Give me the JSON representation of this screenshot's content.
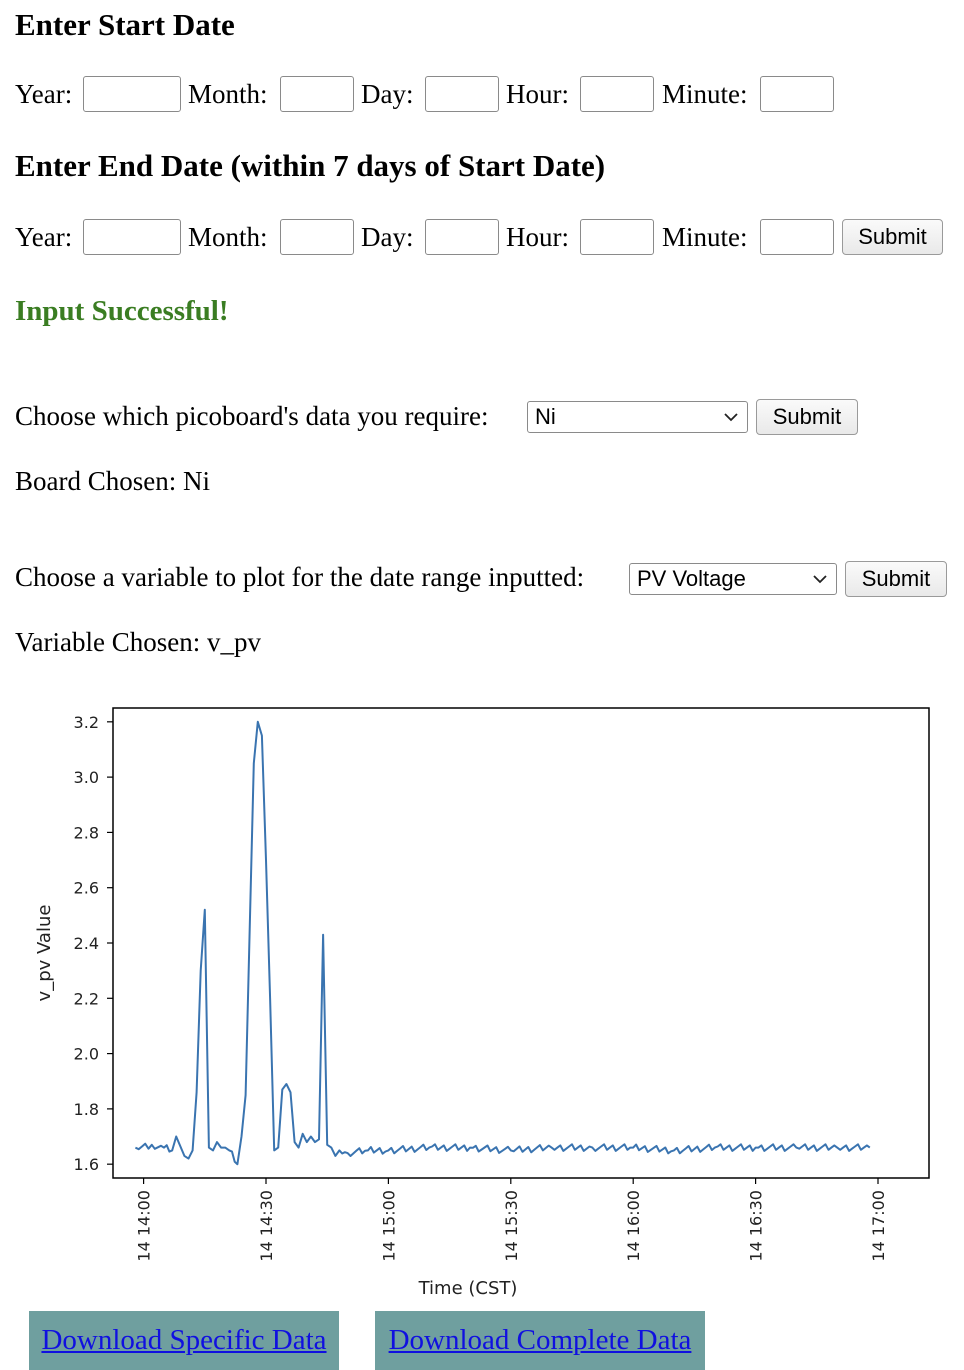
{
  "start": {
    "heading": "Enter Start Date",
    "labels": {
      "year": "Year:",
      "month": "Month:",
      "day": "Day:",
      "hour": "Hour:",
      "minute": "Minute:"
    }
  },
  "end": {
    "heading": "Enter End Date (within 7 days of Start Date)",
    "labels": {
      "year": "Year:",
      "month": "Month:",
      "day": "Day:",
      "hour": "Hour:",
      "minute": "Minute:"
    },
    "submit_label": "Submit"
  },
  "status": {
    "message": "Input Successful!",
    "color": "#3a7d22"
  },
  "board": {
    "prompt": "Choose which picoboard's data you require:",
    "selected": "Ni",
    "submit_label": "Submit",
    "chosen_text": "Board Chosen: Ni"
  },
  "variable": {
    "prompt": "Choose a variable to plot for the date range inputted:",
    "selected": "PV Voltage",
    "submit_label": "Submit",
    "chosen_text": "Variable Chosen: v_pv"
  },
  "downloads": {
    "specific_label": "Download Specific Data",
    "complete_label": "Download Complete Data",
    "bg_color": "#6f9f9f",
    "link_color": "#1010e0"
  },
  "chart_data": {
    "type": "line",
    "xlabel": "Time (CST)",
    "ylabel": "v_pv Value",
    "ylim": [
      1.55,
      3.25
    ],
    "yticks": [
      1.6,
      1.8,
      2.0,
      2.2,
      2.4,
      2.6,
      2.8,
      3.0,
      3.2
    ],
    "xlim": [
      "14:00",
      "17:00"
    ],
    "x_range_minutes": [
      -7.5,
      192.5
    ],
    "xticks": [
      "14 14:00",
      "14 14:30",
      "14 15:00",
      "14 15:30",
      "14 16:00",
      "14 16:30",
      "14 17:00"
    ],
    "grid": false,
    "line_color": "#3a74b0",
    "series": [
      {
        "x": [
          "13:58",
          "14:02",
          "14:05",
          "14:07",
          "14:08",
          "14:10",
          "14:11",
          "14:12",
          "14:13",
          "14:14",
          "14:15",
          "14:16",
          "14:17",
          "14:18",
          "14:19",
          "14:20",
          "14:21",
          "14:23",
          "14:24",
          "14:25",
          "14:26",
          "14:27",
          "14:28",
          "14:29",
          "14:30",
          "14:31",
          "14:32",
          "14:33",
          "14:34",
          "14:35",
          "14:36",
          "14:37",
          "14:38",
          "14:39",
          "14:40",
          "14:41",
          "14:42",
          "14:43",
          "14:44",
          "14:45",
          "14:46",
          "14:47",
          "14:48",
          "14:50",
          "14:55",
          "15:00",
          "15:10",
          "15:20",
          "15:30",
          "15:40",
          "15:50",
          "16:00",
          "16:10",
          "16:20",
          "16:30",
          "16:40",
          "16:50",
          "16:58"
        ],
        "y": [
          1.66,
          1.67,
          1.66,
          1.65,
          1.7,
          1.63,
          1.62,
          1.65,
          1.86,
          2.3,
          2.52,
          1.66,
          1.65,
          1.68,
          1.66,
          1.66,
          1.65,
          1.6,
          1.7,
          1.85,
          2.45,
          3.05,
          3.2,
          3.15,
          2.7,
          2.2,
          1.65,
          1.66,
          1.87,
          1.89,
          1.86,
          1.68,
          1.66,
          1.71,
          1.68,
          1.7,
          1.68,
          1.69,
          2.43,
          1.67,
          1.66,
          1.63,
          1.65,
          1.64,
          1.65,
          1.65,
          1.66,
          1.66,
          1.65,
          1.66,
          1.66,
          1.66,
          1.65,
          1.66,
          1.66,
          1.66,
          1.66,
          1.66
        ]
      }
    ]
  }
}
